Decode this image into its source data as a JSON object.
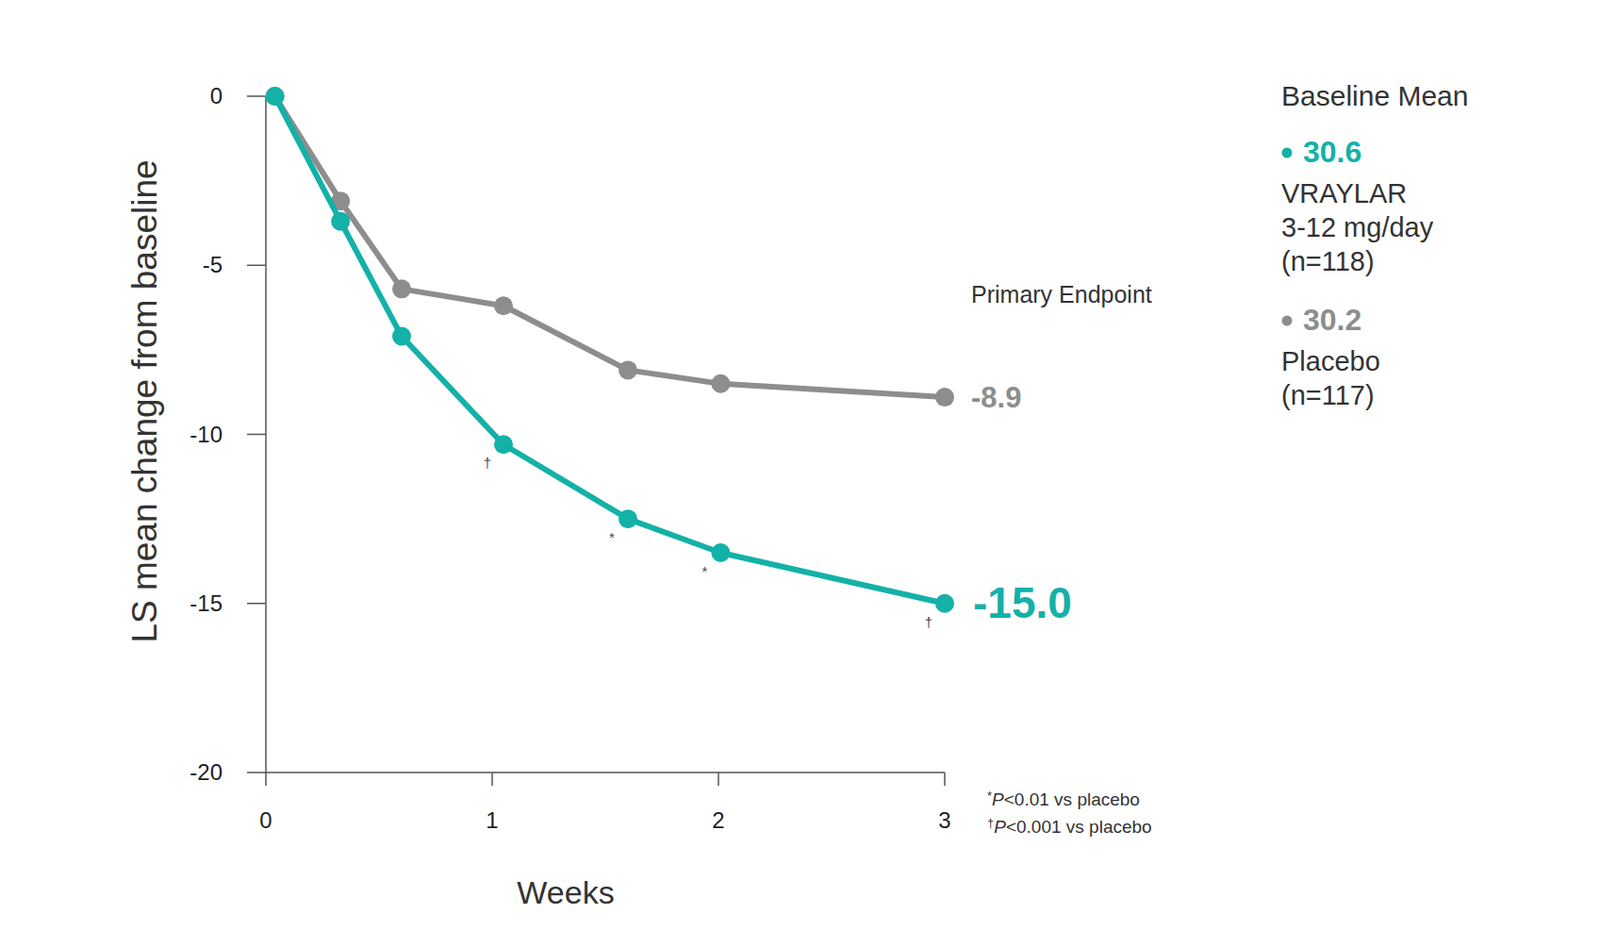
{
  "chart_data": {
    "type": "line",
    "x_label": "Weeks",
    "y_label": "LS mean change from baseline",
    "xlim": [
      0,
      3
    ],
    "xticks": [
      0,
      1,
      2,
      3
    ],
    "ylim": [
      -20,
      0
    ],
    "yticks": [
      0,
      -5,
      -10,
      -15,
      -20
    ],
    "data_labels": true,
    "annotation": "Primary Endpoint",
    "legend_title": "Baseline Mean",
    "series": [
      {
        "name": "VRAYLAR",
        "detail": "3-12 mg/day",
        "n": "(n=118)",
        "baseline": 30.6,
        "color": "#13b1a8",
        "marker": "circle",
        "line_style": "solid",
        "x": [
          0.04,
          0.33,
          0.6,
          1.05,
          1.6,
          2.01,
          3
        ],
        "values": [
          0,
          -3.7,
          -7.1,
          -10.3,
          -12.5,
          -13.5,
          -15.0
        ],
        "value_labels": [
          null,
          null,
          null,
          null,
          null,
          null,
          "-15.0"
        ],
        "significance": [
          null,
          null,
          null,
          "†",
          "*",
          "*",
          "†"
        ]
      },
      {
        "name": "Placebo",
        "n": "(n=117)",
        "baseline": 30.2,
        "color": "#8d8d8d",
        "marker": "circle",
        "line_style": "solid",
        "x": [
          0.04,
          0.33,
          0.6,
          1.05,
          1.6,
          2.01,
          3
        ],
        "values": [
          0,
          -3.1,
          -5.7,
          -6.2,
          -8.1,
          -8.5,
          -8.9
        ],
        "value_labels": [
          null,
          null,
          null,
          null,
          null,
          null,
          "-8.9"
        ]
      }
    ],
    "footnotes": [
      {
        "symbol": "*",
        "italic": "P",
        "text": "<0.01 vs placebo"
      },
      {
        "symbol": "†",
        "italic": "P",
        "text": "<0.001 vs placebo"
      }
    ]
  }
}
